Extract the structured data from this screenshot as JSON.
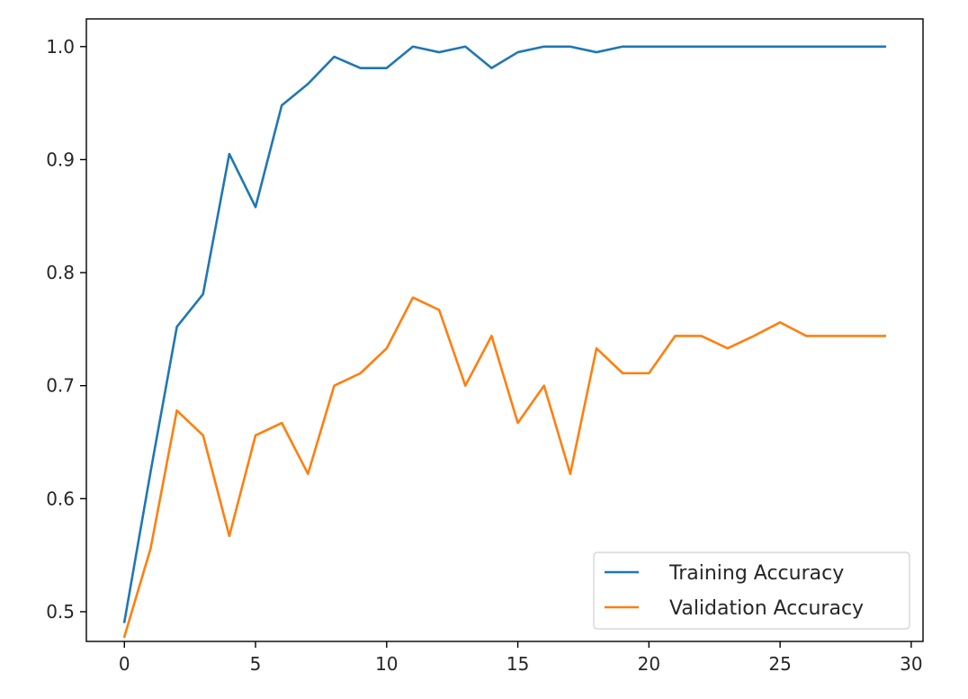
{
  "chart_data": {
    "type": "line",
    "title": "",
    "xlabel": "",
    "ylabel": "",
    "xlim": [
      -1.45,
      30.45
    ],
    "ylim": [
      0.4737,
      1.0245
    ],
    "grid": false,
    "legend_position": "bottom-right",
    "x_ticks": [
      0,
      5,
      10,
      15,
      20,
      25,
      30
    ],
    "y_ticks": [
      0.5,
      0.6,
      0.7,
      0.8,
      0.9,
      1.0
    ],
    "x_tick_labels": [
      "0",
      "5",
      "10",
      "15",
      "20",
      "25",
      "30"
    ],
    "y_tick_labels": [
      "0.5",
      "0.6",
      "0.7",
      "0.8",
      "0.9",
      "1.0"
    ],
    "x": [
      0,
      1,
      2,
      3,
      4,
      5,
      6,
      7,
      8,
      9,
      10,
      11,
      12,
      13,
      14,
      15,
      16,
      17,
      18,
      19,
      20,
      21,
      22,
      23,
      24,
      25,
      26,
      27,
      28,
      29
    ],
    "series": [
      {
        "name": "Training Accuracy",
        "color": "#1f77b4",
        "values": [
          0.491,
          0.624,
          0.752,
          0.781,
          0.905,
          0.858,
          0.948,
          0.967,
          0.991,
          0.981,
          0.981,
          1.0,
          0.995,
          1.0,
          0.981,
          0.995,
          1.0,
          1.0,
          0.995,
          1.0,
          1.0,
          1.0,
          1.0,
          1.0,
          1.0,
          1.0,
          1.0,
          1.0,
          1.0,
          1.0
        ]
      },
      {
        "name": "Validation Accuracy",
        "color": "#ff7f0e",
        "values": [
          0.478,
          0.556,
          0.678,
          0.656,
          0.567,
          0.656,
          0.667,
          0.622,
          0.7,
          0.711,
          0.733,
          0.778,
          0.767,
          0.7,
          0.744,
          0.667,
          0.7,
          0.622,
          0.733,
          0.711,
          0.711,
          0.744,
          0.744,
          0.733,
          0.744,
          0.756,
          0.744,
          0.744,
          0.744,
          0.744
        ]
      }
    ]
  }
}
